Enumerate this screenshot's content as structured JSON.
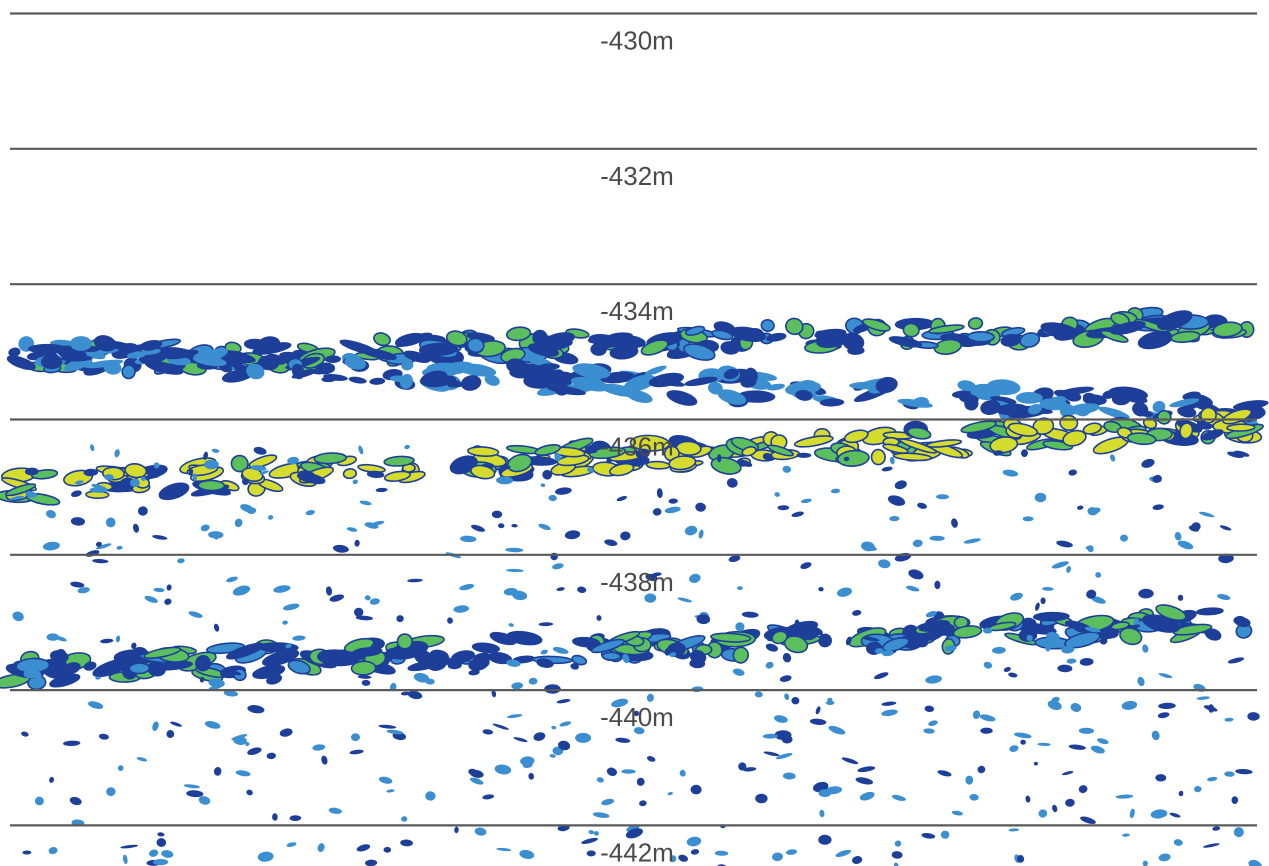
{
  "chart_data": {
    "type": "heatmap",
    "title": "",
    "xlabel": "",
    "ylabel": "",
    "unit": "m",
    "ylim": [
      -429.8,
      -442.6
    ],
    "grid": true,
    "colors": {
      "background": "#ffffff",
      "gridline": "#5a5a5a",
      "label": "#4a4a4a",
      "weak": "#3b8fd1",
      "medium": "#1d3f9a",
      "strong": "#5bbf5e",
      "peak": "#d6dc2e"
    },
    "depth_lines": [
      {
        "depth": -430,
        "label": "-430m"
      },
      {
        "depth": -432,
        "label": "-432m"
      },
      {
        "depth": -434,
        "label": "-434m"
      },
      {
        "depth": -436,
        "label": "-436m"
      },
      {
        "depth": -438,
        "label": "-438m"
      },
      {
        "depth": -440,
        "label": "-440m"
      },
      {
        "depth": -442,
        "label": "-442m"
      }
    ],
    "echo_layers": [
      {
        "name": "",
        "depth_start": -435.15,
        "depth_end": -434.6,
        "intensity": "strong",
        "density": "dense"
      },
      {
        "name": "",
        "depth_start": -435.0,
        "depth_end": -435.9,
        "intensity": "medium",
        "density": "dense"
      },
      {
        "name": "",
        "depth_start": -437.0,
        "depth_end": -436.1,
        "intensity": "peak",
        "density": "dense"
      },
      {
        "name": "",
        "depth_start": -439.7,
        "depth_end": -439.0,
        "intensity": "strong",
        "density": "dense"
      },
      {
        "name": "",
        "depth_start": -436.4,
        "depth_end": -442.8,
        "intensity": "weak",
        "density": "sparse"
      }
    ]
  }
}
